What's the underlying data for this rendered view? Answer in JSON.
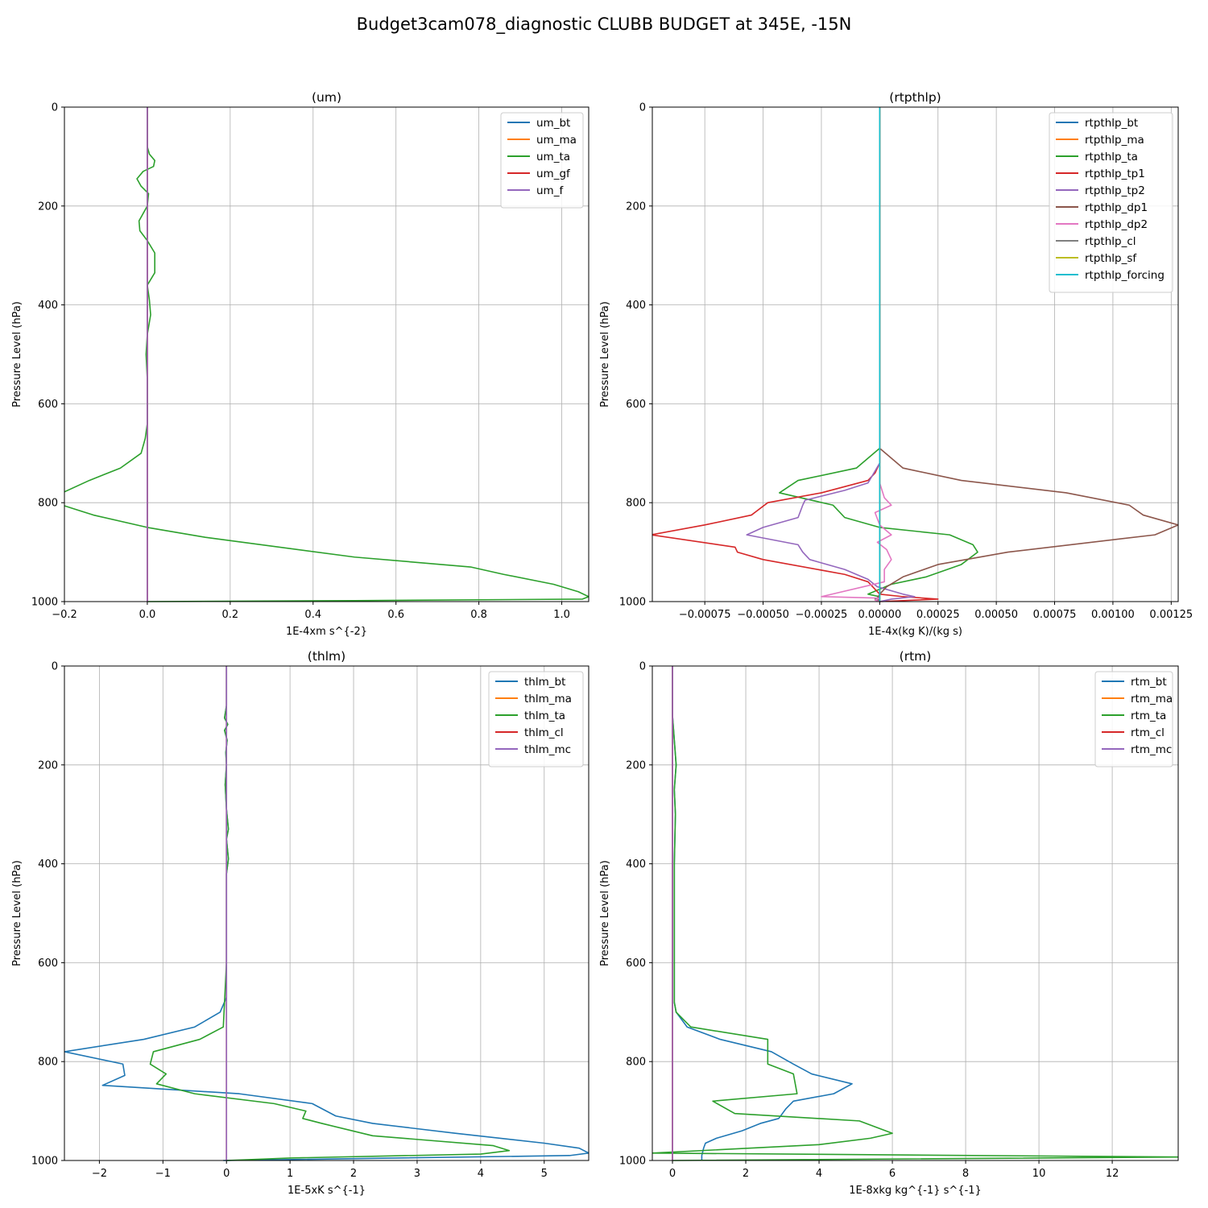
{
  "figure": {
    "title": "Budget3cam078_diagnostic CLUBB BUDGET at 345E, -15N"
  },
  "chart_data": [
    {
      "type": "line",
      "title": "(um)",
      "xlabel": "1E-4xm s^{-2}",
      "ylabel": "Pressure Level (hPa)",
      "xlim": [
        -0.2,
        1.065
      ],
      "ylim": [
        1000,
        0
      ],
      "y_inverted": true,
      "grid": true,
      "legend_position": "upper right",
      "xticks": [
        -0.2,
        0.0,
        0.2,
        0.4,
        0.6,
        0.8,
        1.0
      ],
      "xtick_labels": [
        "−0.2",
        "0.0",
        "0.2",
        "0.4",
        "0.6",
        "0.8",
        "1.0"
      ],
      "yticks": [
        0,
        200,
        400,
        600,
        800,
        1000
      ],
      "series": [
        {
          "name": "um_bt",
          "color": "#1f77b4",
          "x": [
            0,
            0,
            0,
            0,
            0,
            0,
            0,
            0,
            0,
            0,
            0,
            0,
            0
          ],
          "y": [
            0,
            100,
            200,
            300,
            400,
            500,
            600,
            700,
            800,
            900,
            960,
            993,
            1000
          ]
        },
        {
          "name": "um_ma",
          "color": "#ff7f0e",
          "x": [
            0,
            0,
            0,
            0,
            0,
            0,
            0,
            0,
            0,
            0,
            0,
            0,
            0
          ],
          "y": [
            0,
            100,
            200,
            300,
            400,
            500,
            600,
            700,
            800,
            900,
            960,
            993,
            1000
          ]
        },
        {
          "name": "um_ta",
          "color": "#2ca02c",
          "x": [
            0,
            0,
            0.005,
            0.018,
            0.015,
            -0.01,
            -0.025,
            -0.015,
            0.003,
            0.0,
            -0.02,
            -0.018,
            0.0,
            0.018,
            0.018,
            0.0,
            0.005,
            0.008,
            0.0,
            -0.003,
            0.0,
            0.0,
            -0.005,
            -0.015,
            -0.065,
            -0.14,
            -0.205,
            -0.205,
            -0.13,
            0.0,
            0.14,
            0.5,
            0.78,
            0.86,
            0.98,
            1.04,
            1.065,
            1.05,
            0.5,
            0.0
          ],
          "y": [
            0,
            80,
            95,
            108,
            120,
            130,
            145,
            160,
            175,
            200,
            230,
            250,
            270,
            295,
            335,
            360,
            390,
            420,
            460,
            500,
            550,
            640,
            670,
            700,
            730,
            755,
            780,
            805,
            825,
            850,
            870,
            910,
            930,
            945,
            965,
            980,
            990,
            995,
            998,
            1000
          ]
        },
        {
          "name": "um_gf",
          "color": "#d62728",
          "x": [
            0,
            0,
            0,
            0,
            0,
            0,
            0,
            0,
            0,
            0,
            0,
            0,
            0
          ],
          "y": [
            0,
            100,
            200,
            300,
            400,
            500,
            600,
            700,
            800,
            900,
            960,
            993,
            1000
          ]
        },
        {
          "name": "um_f",
          "color": "#9467bd",
          "x": [
            0,
            0,
            0,
            0,
            0,
            0,
            0,
            0,
            0,
            0,
            0,
            0,
            0
          ],
          "y": [
            0,
            100,
            200,
            300,
            400,
            500,
            600,
            700,
            800,
            900,
            960,
            993,
            1000
          ]
        }
      ]
    },
    {
      "type": "line",
      "title": "(rtpthlp)",
      "xlabel": "1E-4x(kg K)/(kg s)",
      "ylabel": "Pressure Level (hPa)",
      "xlim": [
        -0.000975,
        0.00128
      ],
      "ylim": [
        1000,
        0
      ],
      "y_inverted": true,
      "grid": true,
      "legend_position": "upper right",
      "xticks": [
        -0.00075,
        -0.0005,
        -0.00025,
        0.0,
        0.00025,
        0.0005,
        0.00075,
        0.001,
        0.00125
      ],
      "xtick_labels": [
        "−0.00075",
        "−0.00050",
        "−0.00025",
        "0.00000",
        "0.00025",
        "0.00050",
        "0.00075",
        "0.00100",
        "0.00125"
      ],
      "yticks": [
        0,
        200,
        400,
        600,
        800,
        1000
      ],
      "series": [
        {
          "name": "rtpthlp_bt",
          "color": "#1f77b4",
          "x": [
            0,
            0,
            0,
            0,
            0,
            0,
            0
          ],
          "y": [
            0,
            200,
            400,
            600,
            800,
            900,
            1000
          ]
        },
        {
          "name": "rtpthlp_ma",
          "color": "#ff7f0e",
          "x": [
            0,
            0,
            0,
            0,
            0,
            0,
            0
          ],
          "y": [
            0,
            200,
            400,
            600,
            800,
            900,
            1000
          ]
        },
        {
          "name": "rtpthlp_ta",
          "color": "#2ca02c",
          "x": [
            0,
            0,
            -0.0001,
            -0.00035,
            -0.00043,
            -0.0002,
            -0.00015,
            0.0,
            0.0003,
            0.0004,
            0.00042,
            0.00035,
            0.0002,
            5e-05,
            -5e-05,
            0.0,
            -2e-05,
            0.0
          ],
          "y": [
            0,
            690,
            730,
            755,
            780,
            805,
            830,
            850,
            865,
            885,
            900,
            925,
            950,
            965,
            985,
            990,
            995,
            1000
          ]
        },
        {
          "name": "rtpthlp_tp1",
          "color": "#d62728",
          "x": [
            0,
            0,
            -2e-05,
            -5e-05,
            -0.00025,
            -0.00048,
            -0.00055,
            -0.00075,
            -0.00098,
            -0.00062,
            -0.00061,
            -0.0005,
            -0.00015,
            -5e-05,
            -2e-05,
            0.0,
            0.0001,
            0.00025,
            0.0
          ],
          "y": [
            0,
            720,
            740,
            755,
            780,
            800,
            825,
            845,
            865,
            890,
            900,
            915,
            945,
            960,
            975,
            985,
            990,
            995,
            1000
          ]
        },
        {
          "name": "rtpthlp_tp2",
          "color": "#9467bd",
          "x": [
            0,
            0,
            -5e-05,
            -0.00015,
            -0.00032,
            -0.00033,
            -0.00035,
            -0.0005,
            -0.00057,
            -0.00035,
            -0.00033,
            -0.0003,
            -0.00015,
            -5e-05,
            -1e-05,
            0.0001,
            0.00015,
            5e-05,
            0.0
          ],
          "y": [
            0,
            720,
            760,
            775,
            795,
            805,
            830,
            850,
            865,
            885,
            900,
            915,
            935,
            955,
            970,
            985,
            990,
            995,
            1000
          ]
        },
        {
          "name": "rtpthlp_dp1",
          "color": "#8c564b",
          "x": [
            0,
            0,
            0.0001,
            0.00035,
            0.0008,
            0.00107,
            0.00113,
            0.00128,
            0.00118,
            0.00055,
            0.00025,
            0.0001,
            3e-05,
            0.0,
            -1e-05,
            0.0
          ],
          "y": [
            0,
            690,
            730,
            755,
            780,
            805,
            825,
            845,
            865,
            900,
            925,
            950,
            970,
            985,
            993,
            1000
          ]
        },
        {
          "name": "rtpthlp_dp2",
          "color": "#e377c2",
          "x": [
            0,
            0,
            2e-05,
            5e-05,
            -2e-05,
            0.0,
            5e-05,
            -1e-05,
            3e-05,
            5e-05,
            2e-05,
            2e-05,
            -0.00025,
            0.0,
            -2e-05,
            0.0
          ],
          "y": [
            0,
            760,
            790,
            805,
            820,
            845,
            865,
            880,
            895,
            915,
            935,
            960,
            990,
            993,
            997,
            1000
          ]
        },
        {
          "name": "rtpthlp_cl",
          "color": "#7f7f7f",
          "x": [
            0,
            0,
            0,
            0,
            0,
            0,
            0
          ],
          "y": [
            0,
            200,
            400,
            600,
            800,
            900,
            1000
          ]
        },
        {
          "name": "rtpthlp_sf",
          "color": "#bcbd22",
          "x": [
            0,
            0,
            0,
            0,
            0,
            0,
            0
          ],
          "y": [
            0,
            200,
            400,
            600,
            800,
            900,
            1000
          ]
        },
        {
          "name": "rtpthlp_forcing",
          "color": "#17becf",
          "x": [
            0,
            0,
            0,
            0,
            0,
            0,
            0
          ],
          "y": [
            0,
            200,
            400,
            600,
            800,
            900,
            1000
          ]
        }
      ]
    },
    {
      "type": "line",
      "title": "(thlm)",
      "xlabel": "1E-5xK s^{-1}",
      "ylabel": "Pressure Level (hPa)",
      "xlim": [
        -2.55,
        5.7
      ],
      "ylim": [
        1000,
        0
      ],
      "y_inverted": true,
      "grid": true,
      "legend_position": "upper right",
      "xticks": [
        -2,
        -1,
        0,
        1,
        2,
        3,
        4,
        5
      ],
      "xtick_labels": [
        "−2",
        "−1",
        "0",
        "1",
        "2",
        "3",
        "4",
        "5"
      ],
      "yticks": [
        0,
        200,
        400,
        600,
        800,
        1000
      ],
      "series": [
        {
          "name": "thlm_bt",
          "color": "#1f77b4",
          "x": [
            0,
            0,
            -0.03,
            0.02,
            -0.03,
            0.01,
            -0.01,
            0.0,
            -0.02,
            0.0,
            0.03,
            0.0,
            0.03,
            0.0,
            0.0,
            0.0,
            0.0,
            -0.1,
            -0.5,
            -1.3,
            -2.55,
            -1.63,
            -1.6,
            -1.95,
            0.2,
            1.35,
            1.72,
            2.3,
            3.6,
            5.0,
            5.55,
            5.7,
            5.4,
            -0.05
          ],
          "y": [
            0,
            80,
            105,
            118,
            130,
            150,
            175,
            200,
            240,
            290,
            330,
            350,
            390,
            420,
            500,
            600,
            670,
            700,
            730,
            755,
            780,
            805,
            828,
            848,
            865,
            885,
            910,
            925,
            945,
            965,
            975,
            985,
            990,
            1000
          ]
        },
        {
          "name": "thlm_ma",
          "color": "#ff7f0e",
          "x": [
            0,
            0,
            0,
            0,
            0,
            0,
            0
          ],
          "y": [
            0,
            200,
            400,
            600,
            800,
            900,
            1000
          ]
        },
        {
          "name": "thlm_ta",
          "color": "#2ca02c",
          "x": [
            0,
            0,
            -0.03,
            0.02,
            -0.03,
            0.01,
            -0.01,
            0.0,
            -0.02,
            0.0,
            0.03,
            0.0,
            0.03,
            0.0,
            0.0,
            0.0,
            -0.05,
            -0.42,
            -1.15,
            -1.2,
            -0.95,
            -1.1,
            -0.5,
            0.75,
            1.25,
            1.2,
            1.5,
            2.3,
            4.2,
            4.45,
            4.0,
            1.0,
            0.0
          ],
          "y": [
            0,
            80,
            105,
            118,
            130,
            150,
            175,
            200,
            240,
            290,
            330,
            350,
            390,
            420,
            500,
            600,
            730,
            755,
            780,
            805,
            825,
            845,
            865,
            885,
            900,
            915,
            925,
            950,
            970,
            980,
            987,
            995,
            1000
          ]
        },
        {
          "name": "thlm_cl",
          "color": "#d62728",
          "x": [
            0,
            0,
            0,
            0,
            0,
            0,
            0
          ],
          "y": [
            0,
            200,
            400,
            600,
            800,
            900,
            1000
          ]
        },
        {
          "name": "thlm_mc",
          "color": "#9467bd",
          "x": [
            0,
            0,
            0,
            0,
            0,
            0,
            0
          ],
          "y": [
            0,
            200,
            400,
            600,
            800,
            900,
            1000
          ]
        }
      ]
    },
    {
      "type": "line",
      "title": "(rtm)",
      "xlabel": "1E-8xkg kg^{-1} s^{-1}",
      "ylabel": "Pressure Level (hPa)",
      "xlim": [
        -0.55,
        13.8
      ],
      "ylim": [
        1000,
        0
      ],
      "y_inverted": true,
      "grid": true,
      "legend_position": "upper right",
      "xticks": [
        0,
        2,
        4,
        6,
        8,
        10,
        12
      ],
      "xtick_labels": [
        "0",
        "2",
        "4",
        "6",
        "8",
        "10",
        "12"
      ],
      "yticks": [
        0,
        200,
        400,
        600,
        800,
        1000
      ],
      "series": [
        {
          "name": "rtm_bt",
          "color": "#1f77b4",
          "x": [
            0,
            0,
            0.05,
            0.1,
            0.05,
            0.08,
            0.05,
            0.05,
            0.05,
            0.05,
            0.1,
            0.4,
            1.3,
            2.7,
            3.3,
            3.8,
            4.9,
            4.4,
            3.3,
            3.1,
            3.0,
            2.9,
            2.4,
            1.9,
            1.2,
            0.9,
            0.85,
            0.8,
            0.8
          ],
          "y": [
            0,
            100,
            150,
            200,
            250,
            300,
            400,
            500,
            600,
            680,
            700,
            730,
            755,
            780,
            805,
            825,
            845,
            865,
            880,
            895,
            905,
            915,
            925,
            940,
            955,
            965,
            975,
            990,
            1000
          ]
        },
        {
          "name": "rtm_ma",
          "color": "#ff7f0e",
          "x": [
            0,
            0,
            0,
            0,
            0,
            0,
            0
          ],
          "y": [
            0,
            200,
            400,
            600,
            800,
            900,
            1000
          ]
        },
        {
          "name": "rtm_ta",
          "color": "#2ca02c",
          "x": [
            0,
            0,
            0.05,
            0.1,
            0.05,
            0.08,
            0.05,
            0.05,
            0.05,
            0.05,
            0.1,
            0.5,
            2.6,
            2.6,
            3.3,
            3.4,
            1.1,
            1.7,
            5.1,
            6.0,
            5.4,
            4.0,
            -0.55,
            13.8,
            0.0
          ],
          "y": [
            0,
            100,
            150,
            200,
            250,
            300,
            400,
            500,
            600,
            680,
            700,
            730,
            755,
            805,
            825,
            865,
            880,
            905,
            920,
            945,
            955,
            968,
            985,
            993,
            1000
          ]
        },
        {
          "name": "rtm_cl",
          "color": "#d62728",
          "x": [
            0,
            0,
            0,
            0,
            0,
            0,
            0
          ],
          "y": [
            0,
            200,
            400,
            600,
            800,
            900,
            1000
          ]
        },
        {
          "name": "rtm_mc",
          "color": "#9467bd",
          "x": [
            0,
            0,
            0,
            0,
            0,
            0,
            0
          ],
          "y": [
            0,
            200,
            400,
            600,
            800,
            900,
            1000
          ]
        }
      ]
    }
  ]
}
